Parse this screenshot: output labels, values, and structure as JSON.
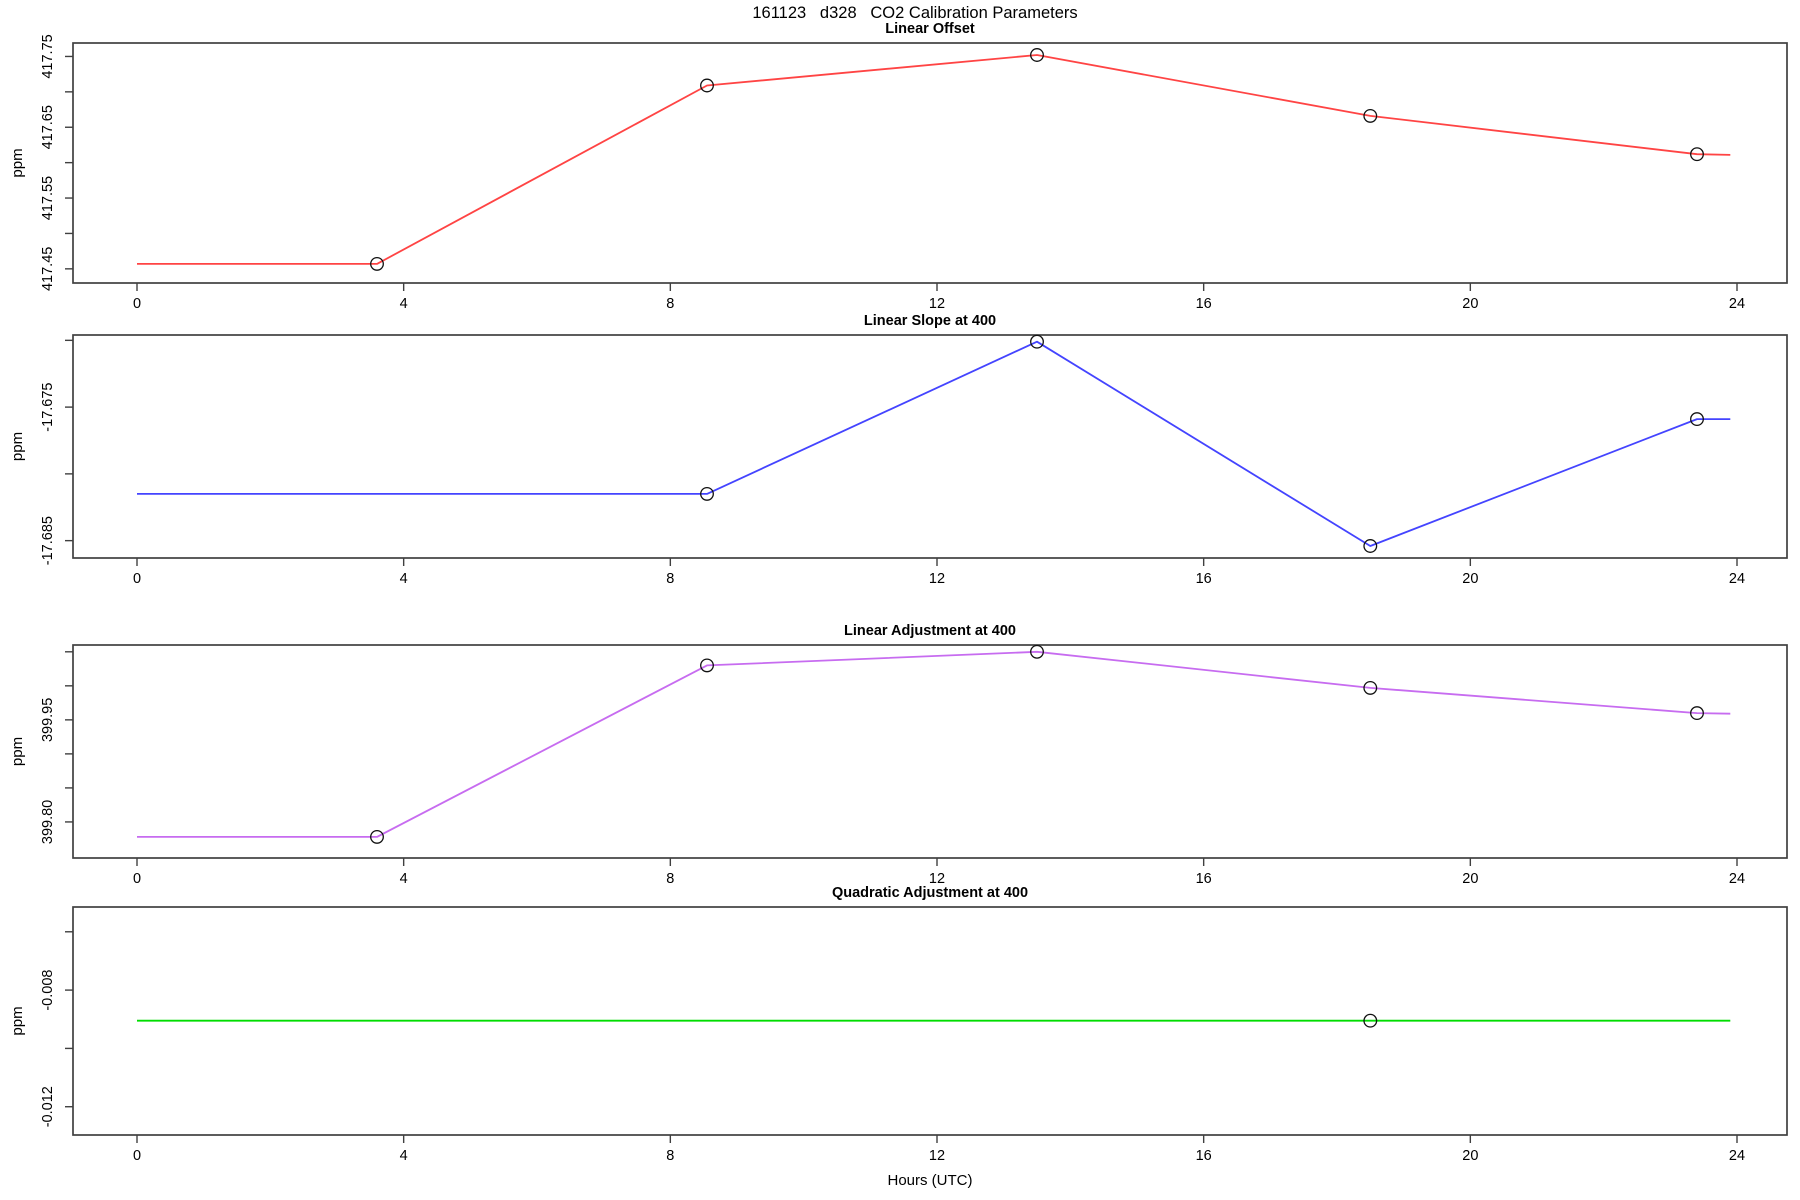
{
  "title": "161123   d328   CO2 Calibration Parameters",
  "xlabel": "Hours (UTC)",
  "chart_data": {
    "type": "line",
    "title": "161123   d328   CO2 Calibration Parameters",
    "x_axis": {
      "xlim": [
        -0.96,
        24.75
      ],
      "ticks": [
        0,
        4,
        8,
        12,
        16,
        20,
        24
      ],
      "tick_labels": [
        "0",
        "4",
        "8",
        "12",
        "16",
        "20",
        "24"
      ],
      "label": "Hours (UTC)"
    },
    "panels": [
      {
        "title": "Linear Offset",
        "ylabel": "ppm",
        "color": "#ff4444",
        "x": [
          0,
          3.6,
          8.55,
          13.5,
          18.5,
          23.4,
          23.9
        ],
        "y": [
          417.457,
          417.457,
          417.709,
          417.752,
          417.666,
          417.612,
          417.611
        ],
        "marker_x": [
          3.6,
          8.55,
          13.5,
          18.5,
          23.4
        ],
        "marker_y": [
          417.457,
          417.709,
          417.752,
          417.666,
          417.612
        ],
        "ylim": [
          417.43,
          417.769
        ],
        "yticks": [
          {
            "v": 417.45,
            "label": "417.45"
          },
          {
            "v": 417.5,
            "label": ""
          },
          {
            "v": 417.55,
            "label": "417.55"
          },
          {
            "v": 417.6,
            "label": ""
          },
          {
            "v": 417.65,
            "label": "417.65"
          },
          {
            "v": 417.7,
            "label": ""
          },
          {
            "v": 417.75,
            "label": "417.75"
          }
        ]
      },
      {
        "title": "Linear Slope at 400",
        "ylabel": "ppm",
        "color": "#4444ff",
        "x": [
          0,
          8.55,
          13.5,
          18.5,
          23.4,
          23.9
        ],
        "y": [
          -17.6815,
          -17.6815,
          -17.6701,
          -17.6854,
          -17.6759,
          -17.6759
        ],
        "marker_x": [
          8.55,
          13.5,
          18.5,
          23.4
        ],
        "marker_y": [
          -17.6815,
          -17.6701,
          -17.6854,
          -17.6759
        ],
        "ylim": [
          -17.6863,
          -17.6696
        ],
        "yticks": [
          {
            "v": -17.685,
            "label": "-17.685"
          },
          {
            "v": -17.68,
            "label": ""
          },
          {
            "v": -17.675,
            "label": "-17.675"
          },
          {
            "v": -17.67,
            "label": ""
          }
        ]
      },
      {
        "title": "Linear Adjustment at 400",
        "ylabel": "ppm",
        "color": "#c76cf0",
        "x": [
          0,
          3.6,
          8.55,
          13.5,
          18.5,
          23.4,
          23.9
        ],
        "y": [
          399.778,
          399.778,
          400.03,
          400.05,
          399.997,
          399.96,
          399.959
        ],
        "marker_x": [
          3.6,
          8.55,
          13.5,
          18.5,
          23.4
        ],
        "marker_y": [
          399.778,
          400.03,
          400.05,
          399.997,
          399.96
        ],
        "ylim": [
          399.747,
          400.06
        ],
        "yticks": [
          {
            "v": 399.8,
            "label": "399.80"
          },
          {
            "v": 399.85,
            "label": ""
          },
          {
            "v": 399.9,
            "label": ""
          },
          {
            "v": 399.95,
            "label": "399.95"
          },
          {
            "v": 400.0,
            "label": ""
          },
          {
            "v": 400.05,
            "label": ""
          }
        ]
      },
      {
        "title": "Quadratic Adjustment at 400",
        "ylabel": "ppm",
        "color": "#00dd00",
        "x": [
          0,
          23.9
        ],
        "y": [
          -0.00905,
          -0.00905
        ],
        "marker_x": [
          18.5
        ],
        "marker_y": [
          -0.00905
        ],
        "ylim": [
          -0.01297,
          -0.00515
        ],
        "yticks": [
          {
            "v": -0.012,
            "label": "-0.012"
          },
          {
            "v": -0.01,
            "label": ""
          },
          {
            "v": -0.008,
            "label": "-0.008"
          },
          {
            "v": -0.006,
            "label": ""
          }
        ]
      }
    ]
  }
}
